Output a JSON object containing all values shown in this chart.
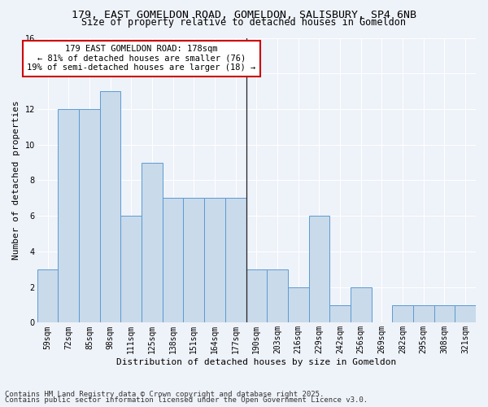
{
  "title1": "179, EAST GOMELDON ROAD, GOMELDON, SALISBURY, SP4 6NB",
  "title2": "Size of property relative to detached houses in Gomeldon",
  "xlabel": "Distribution of detached houses by size in Gomeldon",
  "ylabel": "Number of detached properties",
  "categories": [
    "59sqm",
    "72sqm",
    "85sqm",
    "98sqm",
    "111sqm",
    "125sqm",
    "138sqm",
    "151sqm",
    "164sqm",
    "177sqm",
    "190sqm",
    "203sqm",
    "216sqm",
    "229sqm",
    "242sqm",
    "256sqm",
    "269sqm",
    "282sqm",
    "295sqm",
    "308sqm",
    "321sqm"
  ],
  "values": [
    3,
    12,
    12,
    13,
    6,
    9,
    7,
    7,
    7,
    7,
    3,
    3,
    2,
    6,
    1,
    2,
    0,
    1,
    1,
    1,
    1
  ],
  "bar_color": "#c9daea",
  "bar_edge_color": "#5b9bd5",
  "vline_x": 9.5,
  "annotation_text": "179 EAST GOMELDON ROAD: 178sqm\n← 81% of detached houses are smaller (76)\n19% of semi-detached houses are larger (18) →",
  "annotation_box_color": "#ffffff",
  "annotation_box_edge_color": "#cc0000",
  "ylim": [
    0,
    16
  ],
  "yticks": [
    0,
    2,
    4,
    6,
    8,
    10,
    12,
    14,
    16
  ],
  "footer1": "Contains HM Land Registry data © Crown copyright and database right 2025.",
  "footer2": "Contains public sector information licensed under the Open Government Licence v3.0.",
  "background_color": "#eef2f9",
  "grid_color": "#ffffff",
  "title1_fontsize": 9.5,
  "title2_fontsize": 8.5,
  "xlabel_fontsize": 8,
  "ylabel_fontsize": 8,
  "tick_fontsize": 7,
  "annotation_fontsize": 7.5,
  "footer_fontsize": 6.5
}
